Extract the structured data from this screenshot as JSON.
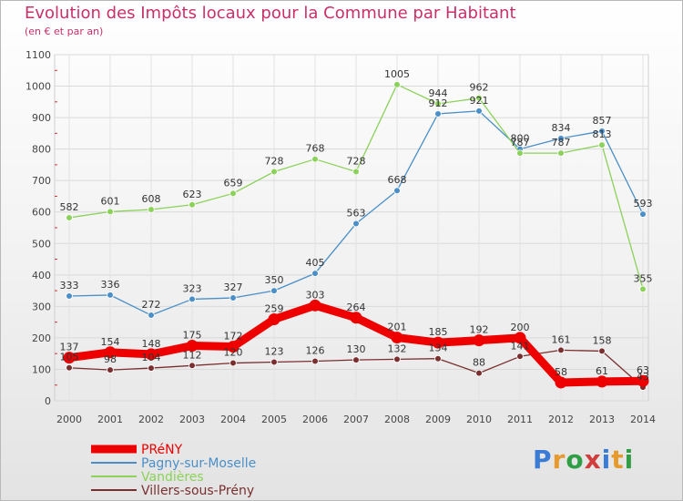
{
  "title": "Evolution des Impôts locaux pour la Commune par Habitant",
  "subtitle": "(en € et par an)",
  "logo": {
    "text": "Proxiti",
    "letter_colors": [
      "#3a7bd5",
      "#e69a2e",
      "#2f9e44",
      "#d23c3c",
      "#3a7bd5",
      "#e69a2e",
      "#2f9e44"
    ]
  },
  "chart_data": {
    "type": "line",
    "title": "Evolution des Impôts locaux pour la Commune par Habitant",
    "subtitle": "(en € et par an)",
    "x": [
      "2000",
      "2001",
      "2002",
      "2003",
      "2004",
      "2005",
      "2006",
      "2007",
      "2008",
      "2009",
      "2010",
      "2011",
      "2012",
      "2013",
      "2014"
    ],
    "ylim": [
      0,
      1100
    ],
    "yticks": [
      0,
      100,
      200,
      300,
      400,
      500,
      600,
      700,
      800,
      900,
      1000,
      1100
    ],
    "grid": true,
    "legend_position": "bottom-left",
    "series": [
      {
        "name": "PRéNY",
        "color": "#ee0000",
        "values": [
          137,
          154,
          148,
          175,
          172,
          259,
          303,
          264,
          201,
          185,
          192,
          200,
          58,
          61,
          63
        ]
      },
      {
        "name": "Pagny-sur-Moselle",
        "color": "#4a8fc8",
        "values": [
          333,
          336,
          272,
          323,
          327,
          350,
          405,
          563,
          668,
          912,
          921,
          800,
          834,
          857,
          593
        ]
      },
      {
        "name": "Vandières",
        "color": "#8bd15a",
        "values": [
          582,
          601,
          608,
          623,
          659,
          728,
          768,
          728,
          1005,
          944,
          962,
          787,
          787,
          813,
          355
        ]
      },
      {
        "name": "Villers-sous-Prény",
        "color": "#7a2f2f",
        "values": [
          105,
          98,
          104,
          112,
          120,
          123,
          126,
          130,
          132,
          134,
          88,
          141,
          161,
          158,
          43
        ]
      }
    ]
  }
}
